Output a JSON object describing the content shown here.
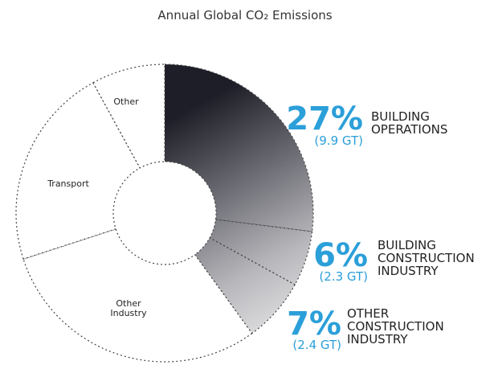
{
  "chart_data": {
    "type": "donut",
    "title": "Annual Global CO₂ Emissions",
    "categories": [
      "BUILDING OPERATIONS",
      "BUILDING CONSTRUCTION INDUSTRY",
      "OTHER CONSTRUCTION INDUSTRY",
      "Other Industry",
      "Transport",
      "Other"
    ],
    "values": [
      27,
      6,
      7,
      30,
      22,
      8
    ],
    "value_labels": [
      "27%",
      "6%",
      "7%",
      null,
      null,
      null
    ],
    "gt": [
      9.9,
      2.3,
      2.4,
      null,
      null,
      null
    ],
    "gt_labels": [
      "(9.9 GT)",
      "(2.3 GT)",
      "(2.4 GT)",
      null,
      null,
      null
    ],
    "highlight": [
      true,
      true,
      true,
      false,
      false,
      false
    ]
  }
}
